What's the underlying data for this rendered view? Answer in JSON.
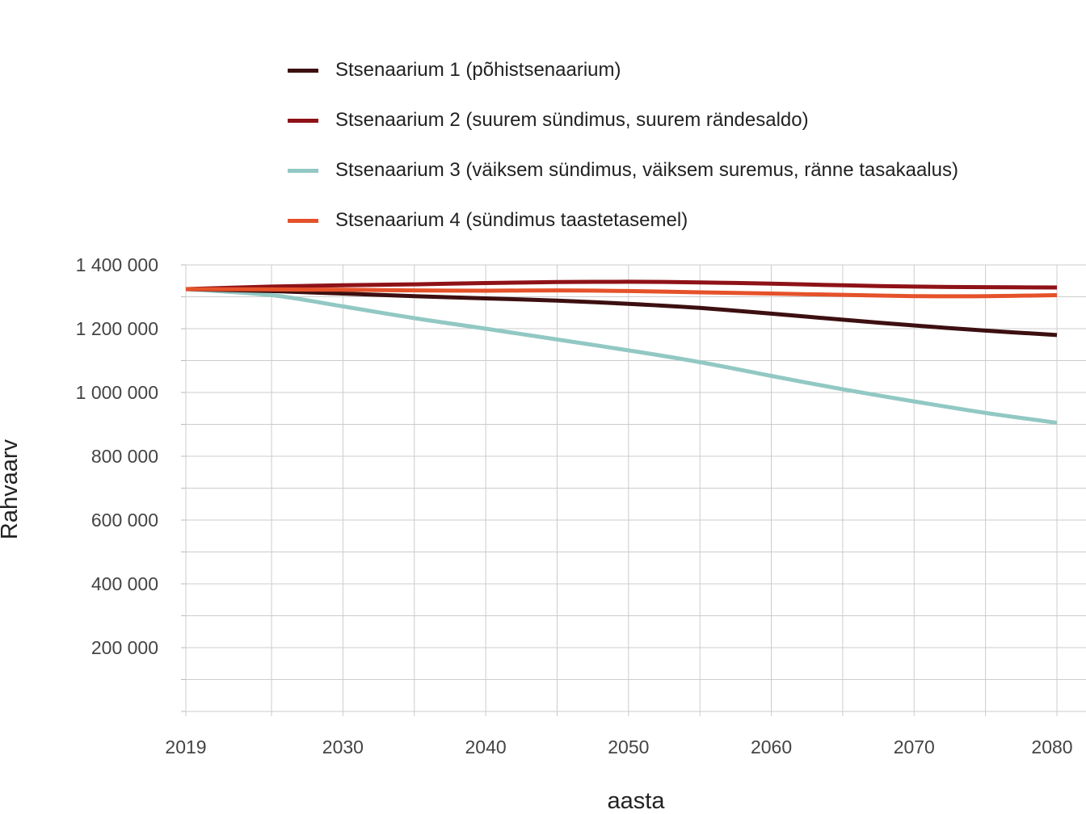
{
  "chart_data": {
    "type": "line",
    "title": "",
    "xlabel": "aasta",
    "ylabel": "Rahvaarv",
    "x": [
      2019,
      2025,
      2030,
      2035,
      2040,
      2045,
      2050,
      2055,
      2060,
      2065,
      2070,
      2075,
      2080
    ],
    "xticks": [
      "2019",
      "2030",
      "2040",
      "2050",
      "2060",
      "2070",
      "2080"
    ],
    "yticks": [
      "1 400 000",
      "1 200 000",
      "1 000 000",
      "800 000",
      "600 000",
      "400 000",
      "200 000"
    ],
    "ylim": [
      0,
      1400000
    ],
    "grid": true,
    "legend_position": "top",
    "series": [
      {
        "name": "Stsenaarium 1 (põhistsenaarium)",
        "color": "#3d0f10",
        "values": [
          1324000,
          1318000,
          1310000,
          1302000,
          1295000,
          1288000,
          1278000,
          1265000,
          1247000,
          1228000,
          1210000,
          1194000,
          1180000
        ]
      },
      {
        "name": "Stsenaarium 2 (suurem sündimus, suurem rändesaldo)",
        "color": "#8e1217",
        "values": [
          1324000,
          1332000,
          1336000,
          1339000,
          1343000,
          1346000,
          1347000,
          1345000,
          1341000,
          1336000,
          1332000,
          1330000,
          1329000
        ]
      },
      {
        "name": "Stsenaarium 3 (väiksem sündimus, väiksem suremus, ränne tasakaalus)",
        "color": "#92c8c3",
        "values": [
          1324000,
          1305000,
          1270000,
          1233000,
          1200000,
          1166000,
          1132000,
          1095000,
          1052000,
          1010000,
          972000,
          936000,
          905000
        ]
      },
      {
        "name": "Stsenaarium 4 (sündimus taastetasemel)",
        "color": "#e5522a",
        "values": [
          1324000,
          1323000,
          1322000,
          1320000,
          1319000,
          1320000,
          1318000,
          1314000,
          1310000,
          1306000,
          1302000,
          1302000,
          1305000
        ]
      }
    ]
  }
}
